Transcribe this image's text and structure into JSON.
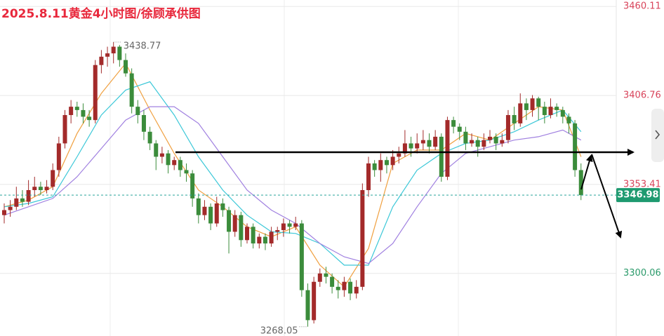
{
  "chart_data": {
    "type": "candlestick",
    "title": "2025.8.11黄金4小时图/徐顾承供图",
    "up_color": "#a32a2a",
    "down_color": "#3b8c3b",
    "ylim": [
      3262.5,
      3464
    ],
    "yticks": [
      3460.11,
      3406.76,
      3353.41,
      3300.06
    ],
    "grid": true,
    "current_price": 3346.98,
    "high_marker": 3438.77,
    "low_marker": 3268.05,
    "ohlc": [
      [
        3335,
        3342,
        3330,
        3338
      ],
      [
        3338,
        3344,
        3334,
        3340
      ],
      [
        3340,
        3352,
        3338,
        3345
      ],
      [
        3345,
        3350,
        3340,
        3343
      ],
      [
        3343,
        3356,
        3341,
        3350
      ],
      [
        3350,
        3358,
        3346,
        3352
      ],
      [
        3352,
        3355,
        3347,
        3350
      ],
      [
        3350,
        3356,
        3348,
        3352
      ],
      [
        3352,
        3366,
        3350,
        3362
      ],
      [
        3362,
        3382,
        3358,
        3378
      ],
      [
        3378,
        3398,
        3375,
        3395
      ],
      [
        3395,
        3404,
        3390,
        3400
      ],
      [
        3400,
        3403,
        3394,
        3398
      ],
      [
        3398,
        3402,
        3390,
        3394
      ],
      [
        3394,
        3398,
        3388,
        3392
      ],
      [
        3392,
        3428,
        3390,
        3425
      ],
      [
        3425,
        3434,
        3420,
        3430
      ],
      [
        3430,
        3436,
        3424,
        3432
      ],
      [
        3432,
        3438.77,
        3426,
        3436
      ],
      [
        3436,
        3437,
        3424,
        3428
      ],
      [
        3428,
        3432,
        3418,
        3420
      ],
      [
        3420,
        3423,
        3396,
        3400
      ],
      [
        3400,
        3404,
        3390,
        3395
      ],
      [
        3395,
        3398,
        3380,
        3385
      ],
      [
        3385,
        3388,
        3374,
        3378
      ],
      [
        3378,
        3380,
        3362,
        3370
      ],
      [
        3370,
        3376,
        3366,
        3372
      ],
      [
        3372,
        3374,
        3360,
        3365
      ],
      [
        3365,
        3370,
        3362,
        3368
      ],
      [
        3368,
        3370,
        3358,
        3362
      ],
      [
        3362,
        3366,
        3355,
        3360
      ],
      [
        3360,
        3362,
        3340,
        3345
      ],
      [
        3345,
        3348,
        3330,
        3335
      ],
      [
        3335,
        3344,
        3332,
        3340
      ],
      [
        3340,
        3342,
        3326,
        3330
      ],
      [
        3330,
        3346,
        3328,
        3342
      ],
      [
        3342,
        3345,
        3334,
        3338
      ],
      [
        3338,
        3340,
        3312,
        3325
      ],
      [
        3325,
        3338,
        3322,
        3335
      ],
      [
        3335,
        3337,
        3316,
        3320
      ],
      [
        3320,
        3330,
        3318,
        3328
      ],
      [
        3328,
        3330,
        3315,
        3318
      ],
      [
        3318,
        3324,
        3315,
        3322
      ],
      [
        3322,
        3324,
        3314,
        3318
      ],
      [
        3318,
        3328,
        3316,
        3325
      ],
      [
        3325,
        3328,
        3320,
        3326
      ],
      [
        3326,
        3333,
        3322,
        3330
      ],
      [
        3330,
        3332,
        3324,
        3328
      ],
      [
        3328,
        3334,
        3326,
        3330
      ],
      [
        3330,
        3332,
        3286,
        3290
      ],
      [
        3290,
        3294,
        3268.05,
        3272
      ],
      [
        3272,
        3298,
        3270,
        3295
      ],
      [
        3295,
        3303,
        3292,
        3300
      ],
      [
        3300,
        3304,
        3294,
        3298
      ],
      [
        3298,
        3300,
        3288,
        3292
      ],
      [
        3292,
        3296,
        3285,
        3290
      ],
      [
        3290,
        3298,
        3286,
        3295
      ],
      [
        3295,
        3297,
        3284,
        3288
      ],
      [
        3288,
        3296,
        3285,
        3292
      ],
      [
        3292,
        3354,
        3290,
        3350
      ],
      [
        3350,
        3370,
        3346,
        3366
      ],
      [
        3366,
        3368,
        3358,
        3362
      ],
      [
        3362,
        3372,
        3355,
        3368
      ],
      [
        3368,
        3370,
        3360,
        3365
      ],
      [
        3365,
        3374,
        3362,
        3370
      ],
      [
        3370,
        3376,
        3366,
        3372
      ],
      [
        3372,
        3386,
        3370,
        3378
      ],
      [
        3378,
        3382,
        3370,
        3375
      ],
      [
        3375,
        3384,
        3372,
        3378
      ],
      [
        3378,
        3386,
        3374,
        3380
      ],
      [
        3380,
        3384,
        3372,
        3376
      ],
      [
        3376,
        3386,
        3374,
        3382
      ],
      [
        3382,
        3384,
        3355,
        3358
      ],
      [
        3358,
        3394,
        3356,
        3392
      ],
      [
        3392,
        3394,
        3384,
        3388
      ],
      [
        3388,
        3390,
        3380,
        3385
      ],
      [
        3385,
        3388,
        3374,
        3378
      ],
      [
        3378,
        3384,
        3376,
        3380
      ],
      [
        3380,
        3382,
        3370,
        3376
      ],
      [
        3376,
        3384,
        3374,
        3380
      ],
      [
        3380,
        3386,
        3378,
        3382
      ],
      [
        3382,
        3384,
        3374,
        3378
      ],
      [
        3378,
        3384,
        3376,
        3380
      ],
      [
        3380,
        3398,
        3378,
        3395
      ],
      [
        3395,
        3400,
        3386,
        3390
      ],
      [
        3390,
        3408,
        3388,
        3402
      ],
      [
        3402,
        3405,
        3392,
        3398
      ],
      [
        3398,
        3407,
        3394,
        3405
      ],
      [
        3405,
        3406,
        3392,
        3400
      ],
      [
        3400,
        3403,
        3390,
        3395
      ],
      [
        3395,
        3405,
        3393,
        3400
      ],
      [
        3400,
        3402,
        3394,
        3398
      ],
      [
        3398,
        3400,
        3390,
        3394
      ],
      [
        3394,
        3396,
        3384,
        3390
      ],
      [
        3390,
        3392,
        3358,
        3362
      ],
      [
        3362,
        3366,
        3344,
        3346.98
      ]
    ],
    "moving_averages": [
      {
        "color": "#f0a040",
        "x": [
          0,
          4,
          8,
          12,
          16,
          20,
          24,
          28,
          32,
          36,
          40,
          44,
          48,
          52,
          56,
          60,
          64,
          68,
          72,
          76,
          80,
          84,
          88,
          92,
          95
        ],
        "values": [
          3340,
          3344,
          3352,
          3384,
          3408,
          3426,
          3398,
          3372,
          3350,
          3340,
          3328,
          3322,
          3328,
          3305,
          3292,
          3315,
          3366,
          3374,
          3374,
          3384,
          3380,
          3390,
          3400,
          3398,
          3370
        ]
      },
      {
        "color": "#3cc8d8",
        "x": [
          0,
          4,
          8,
          12,
          16,
          20,
          24,
          28,
          32,
          36,
          40,
          44,
          48,
          52,
          56,
          60,
          64,
          68,
          72,
          76,
          80,
          84,
          88,
          92,
          95
        ],
        "values": [
          3340,
          3342,
          3346,
          3370,
          3395,
          3410,
          3415,
          3395,
          3370,
          3350,
          3335,
          3325,
          3324,
          3318,
          3305,
          3305,
          3340,
          3362,
          3372,
          3378,
          3380,
          3385,
          3392,
          3398,
          3385
        ]
      },
      {
        "color": "#a080e0",
        "x": [
          0,
          4,
          8,
          12,
          16,
          20,
          24,
          28,
          32,
          36,
          40,
          44,
          48,
          52,
          56,
          60,
          64,
          68,
          72,
          76,
          80,
          84,
          88,
          92,
          95
        ],
        "values": [
          3335,
          3340,
          3345,
          3358,
          3375,
          3392,
          3400,
          3400,
          3390,
          3370,
          3350,
          3338,
          3330,
          3318,
          3310,
          3306,
          3318,
          3340,
          3360,
          3372,
          3376,
          3380,
          3382,
          3386,
          3380
        ]
      }
    ]
  }
}
